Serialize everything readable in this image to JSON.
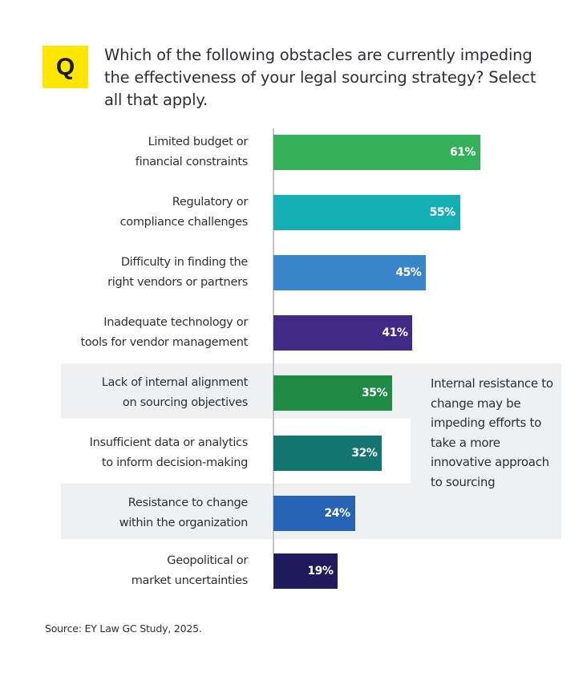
{
  "question_badge": "Q",
  "question": "Which of the following obstacles are currently impeding the effectiveness of your legal sourcing strategy? Select all that apply.",
  "callout": "Internal resistance to change may be impeding efforts to take a more innovative approach to sourcing",
  "source": "Source: EY Law GC Study, 2025.",
  "colors": {
    "badge": "#FFE600",
    "highlight_panel": "#EEF0F2"
  },
  "chart_data": {
    "type": "bar",
    "orientation": "horizontal",
    "title": "Which of the following obstacles are currently impeding the effectiveness of your legal sourcing strategy? Select all that apply.",
    "xlabel": "",
    "ylabel": "",
    "xlim": [
      0,
      100
    ],
    "unit": "%",
    "grid": false,
    "categories": [
      [
        "Limited budget or",
        "financial constraints"
      ],
      [
        "Regulatory or",
        "compliance challenges"
      ],
      [
        "Difficulty in finding the",
        "right vendors or partners"
      ],
      [
        "Inadequate technology or",
        "tools for vendor management"
      ],
      [
        "Lack of internal alignment",
        "on sourcing objectives"
      ],
      [
        "Insufficient data or analytics",
        "to inform decision-making"
      ],
      [
        "Resistance to change",
        "within the organization"
      ],
      [
        "Geopolitical or",
        "market uncertainties"
      ]
    ],
    "values": [
      61,
      55,
      45,
      41,
      35,
      32,
      24,
      19
    ],
    "value_labels": [
      "61%",
      "55%",
      "45%",
      "41%",
      "35%",
      "32%",
      "24%",
      "19%"
    ],
    "bar_colors": [
      "#34B05A",
      "#14AFB2",
      "#3985C9",
      "#3F2B85",
      "#1E8A44",
      "#12756F",
      "#2763B3",
      "#1F1B5C"
    ],
    "highlighted_categories": [
      4,
      6
    ]
  }
}
